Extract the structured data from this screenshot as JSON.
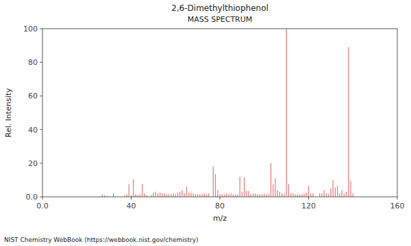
{
  "chart_data": {
    "type": "stem",
    "title": "2,6-Dimethylthiophenol",
    "subtitle": "MASS SPECTRUM",
    "x_label": "m/z",
    "y_label": "Rel. Intensity",
    "footer": "NIST Chemistry WebBook (https://webbook.nist.gov/chemistry)",
    "color": "#e07878",
    "xlim": [
      0.0,
      160
    ],
    "ylim": [
      0.0,
      100
    ],
    "xticks": [
      {
        "value": 0.0,
        "label": "0.0"
      },
      40,
      80,
      120,
      160
    ],
    "yticks": [
      {
        "value": 0.0,
        "label": "0.0"
      },
      20,
      40,
      60,
      80,
      100
    ],
    "grid": false,
    "x": [
      27,
      28,
      29,
      32,
      37,
      38,
      39,
      40,
      41,
      42,
      43,
      44,
      45,
      46,
      47,
      49,
      50,
      51,
      52,
      53,
      54,
      55,
      56,
      57,
      58,
      59,
      60,
      61,
      62,
      63,
      64,
      65,
      66,
      67,
      68,
      69,
      70,
      71,
      72,
      73,
      74,
      75,
      77,
      78,
      79,
      80,
      81,
      82,
      83,
      84,
      85,
      86,
      87,
      88,
      89,
      90,
      91,
      92,
      93,
      94,
      95,
      96,
      97,
      98,
      99,
      100,
      101,
      102,
      103,
      104,
      105,
      106,
      107,
      108,
      109,
      110,
      111,
      112,
      113,
      114,
      115,
      116,
      117,
      118,
      119,
      120,
      121,
      122,
      125,
      126,
      127,
      128,
      129,
      130,
      131,
      132,
      133,
      134,
      135,
      136,
      137,
      138,
      139,
      140
    ],
    "values": [
      1.5,
      0.8,
      0.5,
      2.0,
      0.8,
      1.5,
      7.5,
      1.0,
      10.5,
      1.5,
      1.0,
      1.5,
      7.5,
      2.0,
      1.0,
      1.0,
      2.5,
      3.0,
      2.0,
      2.5,
      2.0,
      2.0,
      1.5,
      1.5,
      1.5,
      2.0,
      1.5,
      2.5,
      3.0,
      4.0,
      2.0,
      6.0,
      2.5,
      2.5,
      2.0,
      1.5,
      1.5,
      1.5,
      1.5,
      2.0,
      1.5,
      2.0,
      18.0,
      13.5,
      4.0,
      1.5,
      1.5,
      1.5,
      2.0,
      1.5,
      2.0,
      1.5,
      1.5,
      1.5,
      12.0,
      3.0,
      11.5,
      3.5,
      3.5,
      1.5,
      2.0,
      2.0,
      1.5,
      1.5,
      1.5,
      2.0,
      1.5,
      1.5,
      20.0,
      7.5,
      11.0,
      4.0,
      3.0,
      2.0,
      1.5,
      100.0,
      7.5,
      2.0,
      2.0,
      1.5,
      1.5,
      1.5,
      1.5,
      2.0,
      2.5,
      6.5,
      2.0,
      2.0,
      2.0,
      2.0,
      4.0,
      2.0,
      1.5,
      5.0,
      10.0,
      5.5,
      6.5,
      2.0,
      4.0,
      2.0,
      3.0,
      89.0,
      9.5,
      2.0
    ]
  }
}
